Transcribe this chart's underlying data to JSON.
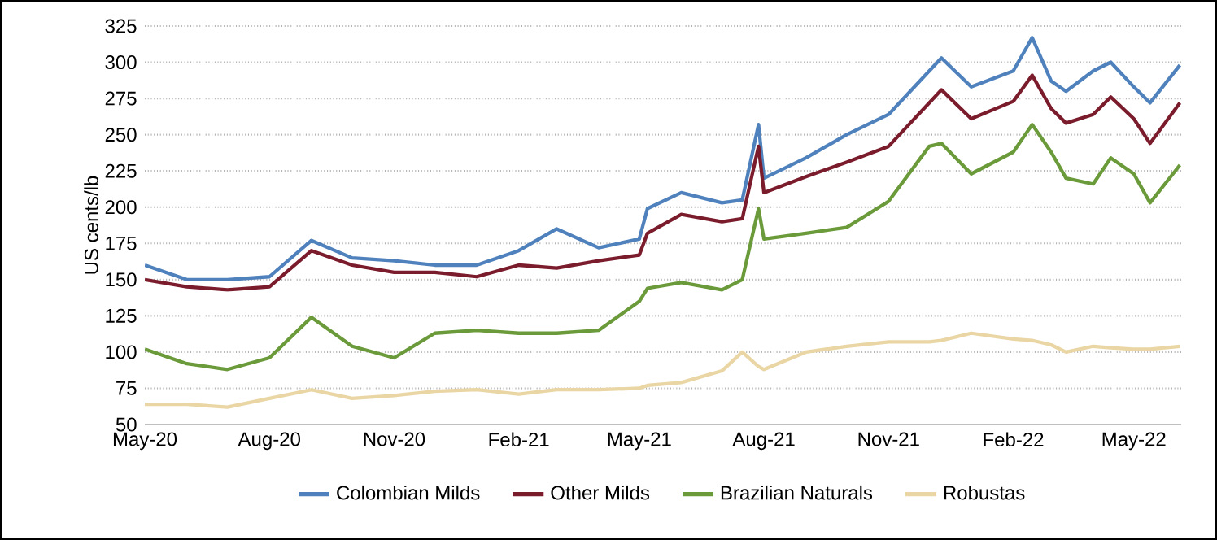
{
  "chart_data": {
    "type": "line",
    "ylabel": "US cents/lb",
    "x": [
      "2020-05-01",
      "2020-06-01",
      "2020-07-01",
      "2020-08-01",
      "2020-09-01",
      "2020-10-01",
      "2020-11-01",
      "2020-12-01",
      "2021-01-01",
      "2021-02-01",
      "2021-03-01",
      "2021-04-01",
      "2021-05-01",
      "2021-05-07",
      "2021-06-01",
      "2021-07-01",
      "2021-07-16",
      "2021-07-28",
      "2021-08-01",
      "2021-09-01",
      "2021-10-01",
      "2021-11-01",
      "2021-12-01",
      "2021-12-10",
      "2022-01-01",
      "2022-02-01",
      "2022-02-15",
      "2022-03-01",
      "2022-03-12",
      "2022-04-01",
      "2022-04-14",
      "2022-05-01",
      "2022-05-13",
      "2022-06-04"
    ],
    "series": [
      {
        "name": "Colombian Milds",
        "color": "#4f81bd",
        "values": [
          160,
          150,
          150,
          152,
          177,
          165,
          163,
          160,
          160,
          170,
          185,
          172,
          178,
          199,
          210,
          203,
          205,
          257,
          220,
          234,
          250,
          264,
          294,
          303,
          283,
          294,
          317,
          287,
          280,
          294,
          300,
          283,
          272,
          298
        ]
      },
      {
        "name": "Other Milds",
        "color": "#7b1c2c",
        "values": [
          150,
          145,
          143,
          145,
          170,
          160,
          155,
          155,
          152,
          160,
          158,
          163,
          167,
          182,
          195,
          190,
          192,
          242,
          210,
          221,
          231,
          242,
          272,
          281,
          261,
          273,
          291,
          268,
          258,
          264,
          276,
          261,
          244,
          272
        ]
      },
      {
        "name": "Brazilian Naturals",
        "color": "#6a9a3a",
        "values": [
          102,
          92,
          88,
          96,
          124,
          104,
          96,
          113,
          115,
          113,
          113,
          115,
          135,
          144,
          148,
          143,
          150,
          199,
          178,
          182,
          186,
          204,
          242,
          244,
          223,
          238,
          257,
          238,
          220,
          216,
          234,
          223,
          203,
          229
        ]
      },
      {
        "name": "Robustas",
        "color": "#ead6a4",
        "values": [
          64,
          64,
          62,
          68,
          74,
          68,
          70,
          73,
          74,
          71,
          74,
          74,
          75,
          77,
          79,
          87,
          100,
          90,
          88,
          100,
          104,
          107,
          107,
          108,
          113,
          109,
          108,
          105,
          100,
          104,
          103,
          102,
          102,
          104
        ]
      }
    ],
    "xlim": [
      "2020-05-01",
      "2022-06-05"
    ],
    "xticks": [
      {
        "value": "2020-05-01",
        "label": "May-20"
      },
      {
        "value": "2020-08-01",
        "label": "Aug-20"
      },
      {
        "value": "2020-11-01",
        "label": "Nov-20"
      },
      {
        "value": "2021-02-01",
        "label": "Feb-21"
      },
      {
        "value": "2021-05-01",
        "label": "May-21"
      },
      {
        "value": "2021-08-01",
        "label": "Aug-21"
      },
      {
        "value": "2021-11-01",
        "label": "Nov-21"
      },
      {
        "value": "2022-02-01",
        "label": "Feb-22"
      },
      {
        "value": "2022-05-01",
        "label": "May-22"
      }
    ],
    "ylim": [
      50,
      325
    ],
    "yticks": [
      50,
      75,
      100,
      125,
      150,
      175,
      200,
      225,
      250,
      275,
      300,
      325
    ],
    "grid": "y",
    "legend": "bottom",
    "marker": "none",
    "line_style": "solid"
  }
}
